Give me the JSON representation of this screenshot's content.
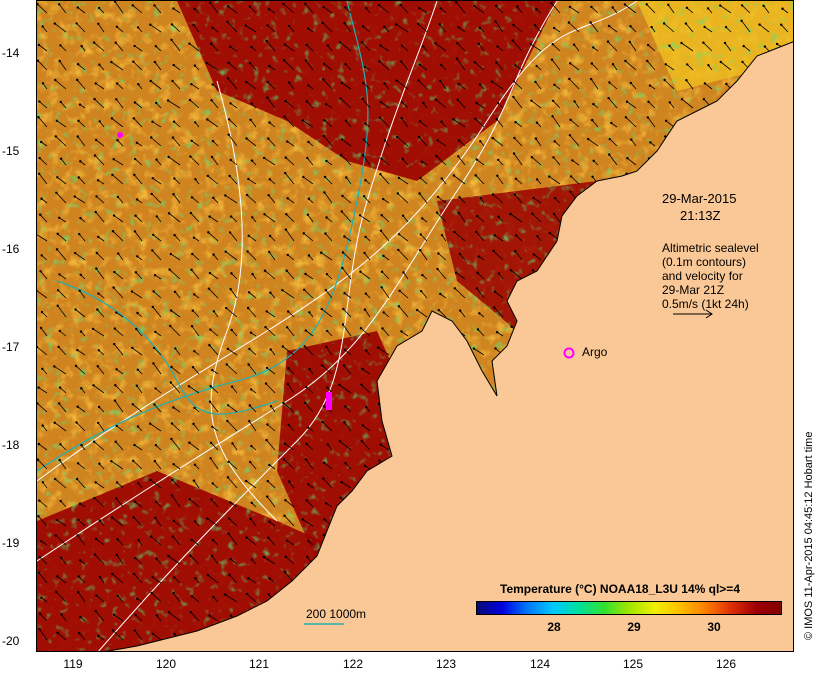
{
  "map": {
    "date": "29-Mar-2015",
    "time": "21:13Z",
    "altimetry_lines": [
      "Altimetric sealevel",
      "(0.1m contours)",
      "and velocity for",
      "29-Mar 21Z",
      "0.5m/s (1kt 24h)"
    ],
    "argo_label": "Argo",
    "depth_legend": "200  1000m",
    "colorbar_title": "Temperature (°C) NOAA18_L3U 14% ql>=4",
    "colorbar_ticks": [
      "28",
      "29",
      "30"
    ],
    "credit": "© IMOS 11-Apr-2015 04:45:12 Hobart time",
    "lat_ticks": [
      "-14",
      "-15",
      "-16",
      "-17",
      "-18",
      "-19",
      "-20"
    ],
    "lon_ticks": [
      "119",
      "120",
      "121",
      "122",
      "123",
      "124",
      "125",
      "126"
    ],
    "colors": {
      "land": "#f9c896",
      "warm_sst": "#9a0000",
      "mid_sst": "#e09020",
      "cool_sst": "#20c040",
      "contour": "#ffffff",
      "isobath": "#20b0b0",
      "argo": "#ff00ff"
    }
  }
}
